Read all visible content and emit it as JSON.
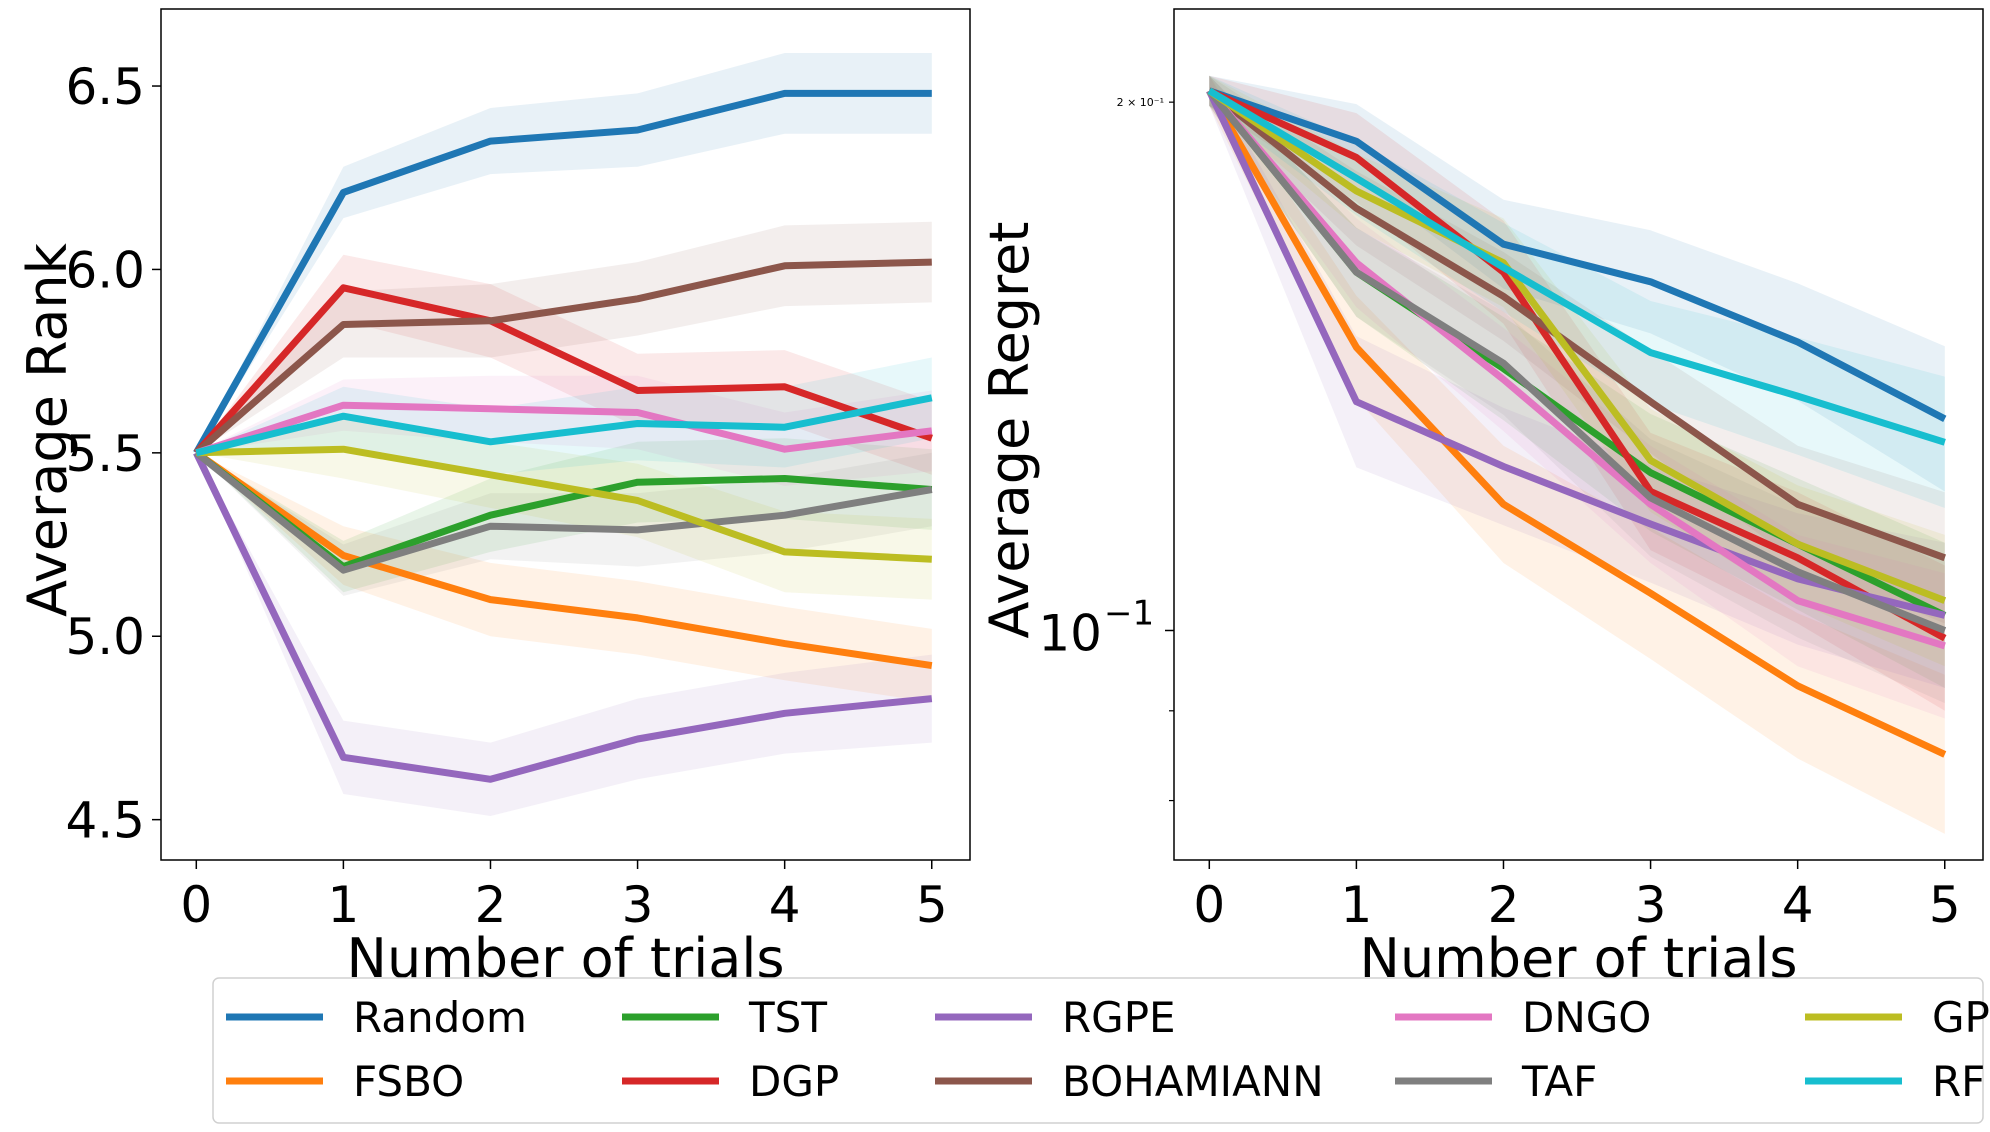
{
  "colors": {
    "Random": "#1f77b4",
    "FSBO": "#ff7f0e",
    "TST": "#2ca02c",
    "DGP": "#d62728",
    "RGPE": "#9467bd",
    "BOHAMIANN": "#8c564b",
    "DNGO": "#e377c2",
    "TAF": "#7f7f7f",
    "GP": "#bcbd22",
    "RF": "#17becf"
  },
  "chart_data": [
    {
      "type": "line",
      "xlabel": "Number of trials",
      "ylabel": "Average Rank",
      "x": [
        0,
        1,
        2,
        3,
        4,
        5
      ],
      "xlim": [
        -0.24,
        5.26
      ],
      "ylim": [
        4.39,
        6.71
      ],
      "xticks": [
        "0",
        "1",
        "2",
        "3",
        "4",
        "5"
      ],
      "yticks": [
        4.5,
        5.0,
        5.5,
        6.0,
        6.5
      ],
      "ytick_labels": [
        "4.5",
        "5.0",
        "5.5",
        "6.0",
        "6.5"
      ],
      "series": [
        {
          "name": "Random",
          "values": [
            5.5,
            6.21,
            6.35,
            6.38,
            6.48,
            6.48
          ],
          "band": [
            0,
            0.07,
            0.09,
            0.1,
            0.11,
            0.11
          ]
        },
        {
          "name": "FSBO",
          "values": [
            5.5,
            5.22,
            5.1,
            5.05,
            4.98,
            4.92
          ],
          "band": [
            0,
            0.08,
            0.1,
            0.1,
            0.1,
            0.1
          ]
        },
        {
          "name": "TST",
          "values": [
            5.5,
            5.19,
            5.33,
            5.42,
            5.43,
            5.4
          ],
          "band": [
            0,
            0.07,
            0.1,
            0.11,
            0.11,
            0.11
          ]
        },
        {
          "name": "DGP",
          "values": [
            5.5,
            5.95,
            5.86,
            5.67,
            5.68,
            5.54
          ],
          "band": [
            0,
            0.09,
            0.1,
            0.1,
            0.1,
            0.1
          ]
        },
        {
          "name": "RGPE",
          "values": [
            5.5,
            4.67,
            4.61,
            4.72,
            4.79,
            4.83
          ],
          "band": [
            0,
            0.1,
            0.1,
            0.11,
            0.11,
            0.12
          ]
        },
        {
          "name": "BOHAMIANN",
          "values": [
            5.5,
            5.85,
            5.86,
            5.92,
            6.01,
            6.02
          ],
          "band": [
            0,
            0.09,
            0.1,
            0.1,
            0.11,
            0.11
          ]
        },
        {
          "name": "DNGO",
          "values": [
            5.5,
            5.63,
            5.62,
            5.61,
            5.51,
            5.56
          ],
          "band": [
            0,
            0.07,
            0.09,
            0.1,
            0.1,
            0.11
          ]
        },
        {
          "name": "TAF",
          "values": [
            5.5,
            5.18,
            5.3,
            5.29,
            5.33,
            5.4
          ],
          "band": [
            0,
            0.07,
            0.09,
            0.1,
            0.1,
            0.1
          ]
        },
        {
          "name": "GP",
          "values": [
            5.5,
            5.51,
            5.44,
            5.37,
            5.23,
            5.21
          ],
          "band": [
            0,
            0.08,
            0.09,
            0.1,
            0.11,
            0.11
          ]
        },
        {
          "name": "RF",
          "values": [
            5.5,
            5.6,
            5.53,
            5.58,
            5.57,
            5.65
          ],
          "band": [
            0,
            0.08,
            0.09,
            0.1,
            0.11,
            0.11
          ]
        }
      ]
    },
    {
      "type": "line",
      "xlabel": "Number of trials",
      "ylabel": "Average Regret",
      "yscale": "log",
      "x": [
        0,
        1,
        2,
        3,
        4,
        5
      ],
      "xlim": [
        -0.24,
        5.26
      ],
      "ylim": [
        0.074,
        0.226
      ],
      "xticks": [
        "0",
        "1",
        "2",
        "3",
        "4",
        "5"
      ],
      "major_yticks": [
        0.1
      ],
      "major_ytick_labels": [
        "10"
      ],
      "major_ytick_exponent": "−1",
      "minor_yticks": [
        0.08,
        0.09,
        0.2
      ],
      "minor_ytick_labels": [
        "",
        "",
        "2 × 10⁻¹"
      ],
      "series": [
        {
          "name": "Random",
          "values": [
            0.203,
            0.19,
            0.166,
            0.158,
            0.146,
            0.132
          ],
          "band": [
            0.02,
            0.05,
            0.06,
            0.07,
            0.08,
            0.1
          ]
        },
        {
          "name": "FSBO",
          "values": [
            0.203,
            0.145,
            0.118,
            0.105,
            0.093,
            0.085
          ],
          "band": [
            0.02,
            0.07,
            0.08,
            0.09,
            0.1,
            0.11
          ]
        },
        {
          "name": "TST",
          "values": [
            0.203,
            0.16,
            0.141,
            0.123,
            0.112,
            0.102
          ],
          "band": [
            0.02,
            0.06,
            0.07,
            0.08,
            0.09,
            0.1
          ]
        },
        {
          "name": "DGP",
          "values": [
            0.203,
            0.186,
            0.16,
            0.12,
            0.11,
            0.099
          ],
          "band": [
            0.02,
            0.06,
            0.07,
            0.08,
            0.09,
            0.1
          ]
        },
        {
          "name": "RGPE",
          "values": [
            0.203,
            0.135,
            0.124,
            0.115,
            0.107,
            0.102
          ],
          "band": [
            0.02,
            0.09,
            0.08,
            0.08,
            0.09,
            0.1
          ]
        },
        {
          "name": "BOHAMIANN",
          "values": [
            0.203,
            0.174,
            0.155,
            0.135,
            0.118,
            0.11
          ],
          "band": [
            0.02,
            0.05,
            0.06,
            0.07,
            0.08,
            0.09
          ]
        },
        {
          "name": "DNGO",
          "values": [
            0.203,
            0.162,
            0.139,
            0.118,
            0.104,
            0.098
          ],
          "band": [
            0.02,
            0.06,
            0.07,
            0.08,
            0.09,
            0.1
          ]
        },
        {
          "name": "TAF",
          "values": [
            0.203,
            0.16,
            0.142,
            0.119,
            0.108,
            0.1
          ],
          "band": [
            0.02,
            0.06,
            0.07,
            0.08,
            0.09,
            0.1
          ]
        },
        {
          "name": "GP",
          "values": [
            0.203,
            0.178,
            0.162,
            0.125,
            0.112,
            0.104
          ],
          "band": [
            0.02,
            0.05,
            0.06,
            0.07,
            0.08,
            0.09
          ]
        },
        {
          "name": "RF",
          "values": [
            0.203,
            0.181,
            0.161,
            0.144,
            0.136,
            0.128
          ],
          "band": [
            0.02,
            0.05,
            0.06,
            0.07,
            0.08,
            0.09
          ]
        }
      ]
    }
  ],
  "legend": {
    "entries": [
      "Random",
      "FSBO",
      "TST",
      "DGP",
      "RGPE",
      "BOHAMIANN",
      "DNGO",
      "TAF",
      "GP",
      "RF"
    ]
  }
}
